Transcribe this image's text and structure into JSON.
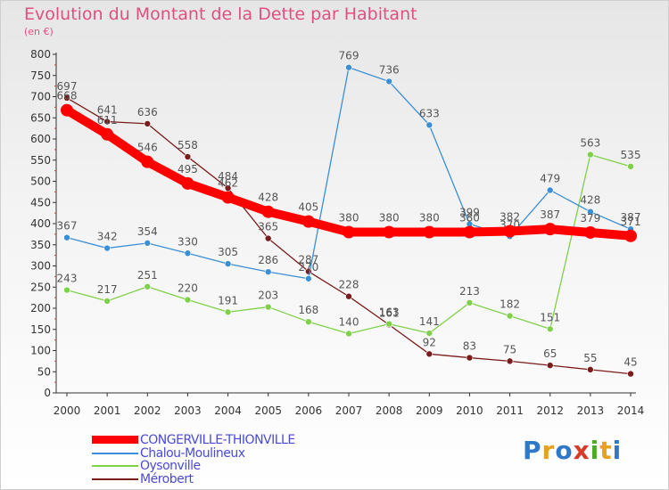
{
  "title": "Evolution du Montant de la Dette par Habitant",
  "unit": "(en €)",
  "logo": {
    "text": "Proxiti",
    "letters": [
      "P",
      "r",
      "o",
      "x",
      "i",
      "t",
      "i"
    ],
    "colors": [
      "#2f78c7",
      "#e8a020",
      "#2f78c7",
      "#d83a2a",
      "#4aa82a",
      "#e8a020",
      "#2f78c7"
    ]
  },
  "chart_data": {
    "type": "line",
    "x": [
      "2000",
      "2001",
      "2002",
      "2003",
      "2004",
      "2005",
      "2006",
      "2007",
      "2008",
      "2009",
      "2010",
      "2011",
      "2012",
      "2013",
      "2014"
    ],
    "ylim": [
      0,
      800
    ],
    "yticks": [
      0,
      50,
      100,
      150,
      200,
      250,
      300,
      350,
      400,
      450,
      500,
      550,
      600,
      650,
      700,
      750,
      800
    ],
    "grid": false,
    "legend_position": "bottom-left",
    "series": [
      {
        "name": "CONGERVILLE-THIONVILLE",
        "color": "#ff0000",
        "values": [
          668,
          611,
          546,
          495,
          462,
          428,
          405,
          380,
          380,
          380,
          380,
          382,
          387,
          379,
          371
        ],
        "labels": [
          "668",
          "611",
          "546",
          "495",
          "462",
          "428",
          "405",
          "380",
          "380",
          "380",
          "380",
          "382",
          "387",
          "379",
          "371"
        ]
      },
      {
        "name": "Chalou-Moulineux",
        "color": "#3b8fd6",
        "values": [
          367,
          342,
          354,
          330,
          305,
          286,
          270,
          769,
          736,
          633,
          399,
          370,
          479,
          428,
          387
        ],
        "labels": [
          "367",
          "342",
          "354",
          "330",
          "305",
          "286",
          "270",
          "769",
          "736",
          "633",
          "399",
          "370",
          "479",
          "428",
          "387"
        ]
      },
      {
        "name": "Oysonville",
        "color": "#7fd14a",
        "values": [
          243,
          217,
          251,
          220,
          191,
          203,
          168,
          140,
          163,
          141,
          213,
          182,
          151,
          563,
          535
        ],
        "labels": [
          "243",
          "217",
          "251",
          "220",
          "191",
          "203",
          "168",
          "140",
          "163",
          "141",
          "213",
          "182",
          "151",
          "563",
          "535"
        ]
      },
      {
        "name": "Mérobert",
        "color": "#7a1c1c",
        "values": [
          697,
          641,
          636,
          558,
          484,
          365,
          287,
          228,
          161,
          92,
          83,
          75,
          65,
          55,
          45
        ],
        "labels": [
          "697",
          "641",
          "636",
          "558",
          "484",
          "365",
          "287",
          "228",
          "161",
          "92",
          "83",
          "75",
          "65",
          "55",
          "45"
        ]
      }
    ]
  }
}
